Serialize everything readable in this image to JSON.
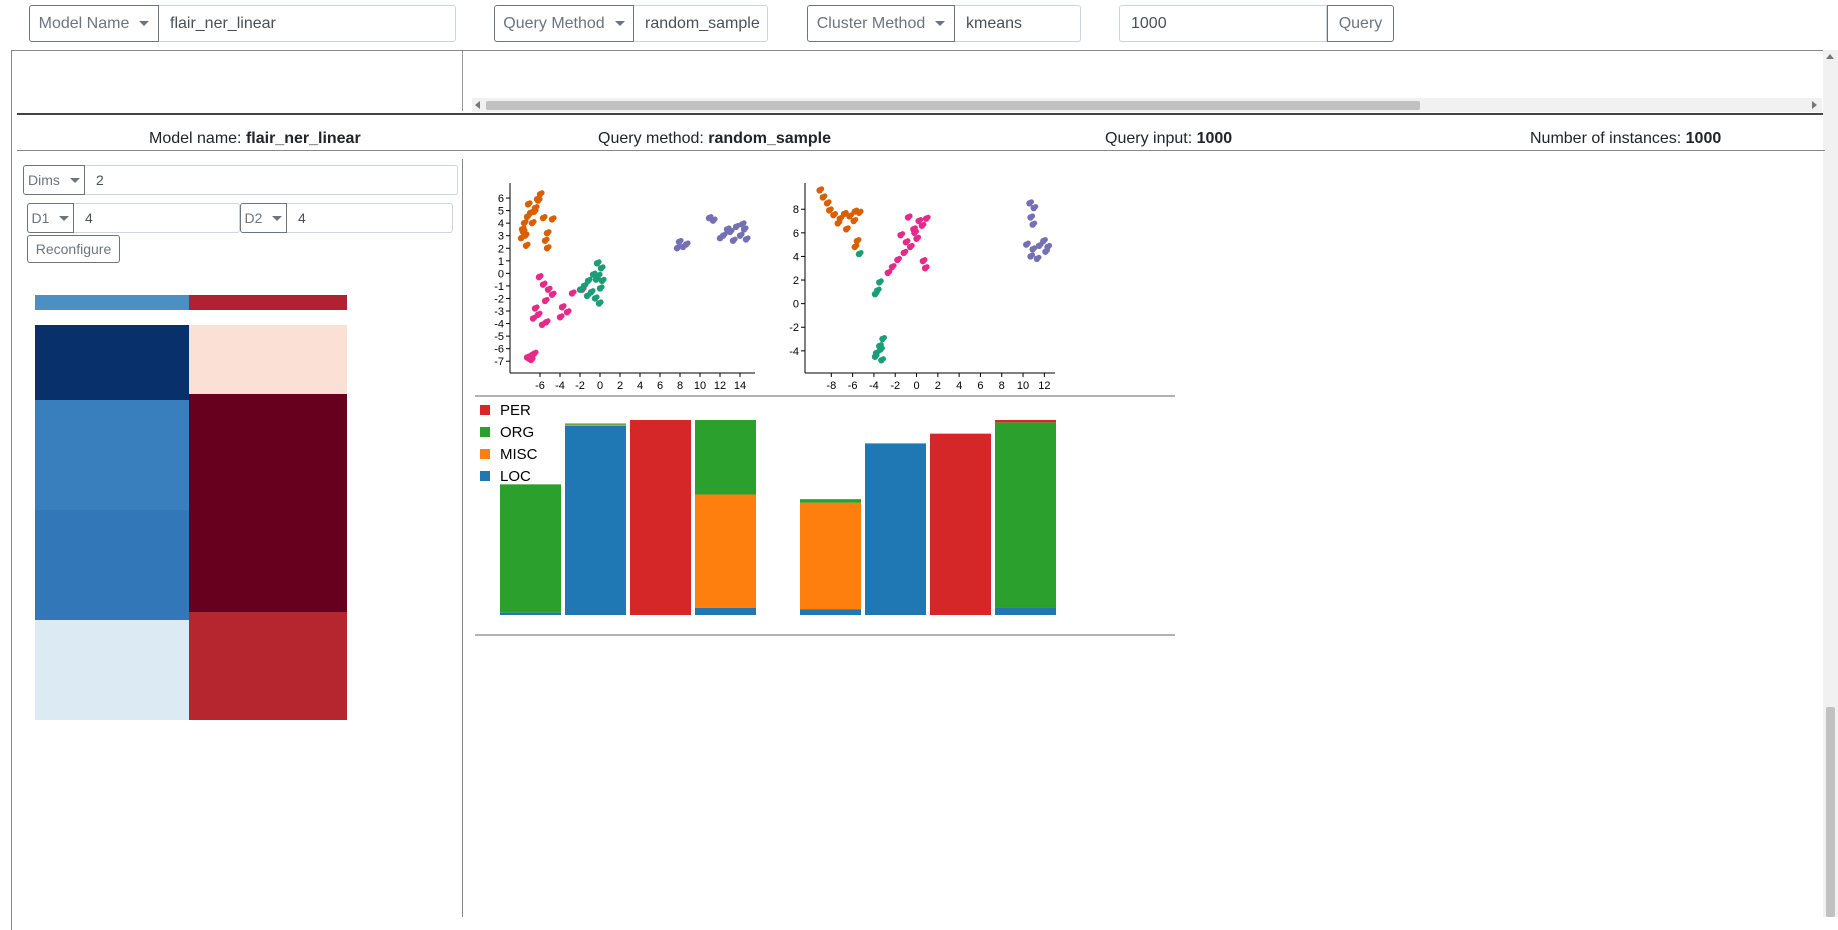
{
  "toolbar": {
    "model_label": "Model Name",
    "model_value": "flair_ner_linear",
    "query_method_label": "Query Method",
    "query_method_value": "random_sample",
    "cluster_method_label": "Cluster Method",
    "cluster_method_value": "kmeans",
    "query_value": "1000",
    "query_button": "Query"
  },
  "summary": {
    "model_label": "Model name:",
    "model_value": "flair_ner_linear",
    "method_label": "Query method:",
    "method_value": "random_sample",
    "input_label": "Query input:",
    "input_value": "1000",
    "instances_label": "Number of instances:",
    "instances_value": "1000"
  },
  "config": {
    "dims_label": "Dims",
    "dims_value": "2",
    "d1_label": "D1",
    "d1_value": "4",
    "d2_label": "D2",
    "d2_value": "4",
    "reconfigure_label": "Reconfigure"
  },
  "heatmap": {
    "header_colors": [
      "#4a90c4",
      "#b02233"
    ],
    "rows": [
      [
        "#08306b",
        "#fae0d5"
      ],
      [
        "#3a7fbd",
        "#67001f"
      ],
      [
        "#3278b8",
        "#67001f"
      ],
      [
        "#dceaf4",
        "#b5262f"
      ]
    ]
  },
  "scatter_colors": {
    "orange": "#d95f02",
    "pink": "#e7298a",
    "green": "#1b9e77",
    "purple": "#7570b3"
  },
  "chart_data": [
    {
      "type": "scatter",
      "x_ticks": [
        "-6",
        "-4",
        "-2",
        "0",
        "2",
        "4",
        "6",
        "8",
        "10",
        "12",
        "14"
      ],
      "y_ticks": [
        "6",
        "5",
        "4",
        "3",
        "2",
        "1",
        "0",
        "-1",
        "-2",
        "-3",
        "-4",
        "-5",
        "-6",
        "-7"
      ],
      "xlim": [
        -8.5,
        15.5
      ],
      "ylim": [
        -7.3,
        6.8
      ],
      "clusters": [
        {
          "color": "orange",
          "points": [
            [
              -6.0,
              6.3
            ],
            [
              -6.2,
              5.8
            ],
            [
              -6.5,
              5.2
            ],
            [
              -7.0,
              4.8
            ],
            [
              -7.3,
              4.5
            ],
            [
              -7.6,
              4.0
            ],
            [
              -7.8,
              3.5
            ],
            [
              -7.5,
              3.0
            ],
            [
              -7.9,
              2.8
            ],
            [
              -7.4,
              2.2
            ],
            [
              -4.8,
              4.3
            ],
            [
              -5.7,
              4.4
            ],
            [
              -5.3,
              3.2
            ],
            [
              -5.5,
              2.6
            ],
            [
              -5.3,
              2.0
            ],
            [
              -7.2,
              5.5
            ],
            [
              -6.8,
              4.0
            ],
            [
              -6.3,
              5.9
            ],
            [
              -7.7,
              3.3
            ],
            [
              -6.6,
              4.9
            ]
          ]
        },
        {
          "color": "pink",
          "points": [
            [
              -6.1,
              -0.3
            ],
            [
              -5.7,
              -0.9
            ],
            [
              -5.2,
              -1.3
            ],
            [
              -4.8,
              -1.7
            ],
            [
              -5.5,
              -2.2
            ],
            [
              -6.2,
              -3.3
            ],
            [
              -6.7,
              -3.6
            ],
            [
              -5.8,
              -4.1
            ],
            [
              -5.4,
              -3.9
            ],
            [
              -3.8,
              -2.7
            ],
            [
              -3.3,
              -3.1
            ],
            [
              -4.0,
              -3.5
            ],
            [
              -2.8,
              -1.6
            ],
            [
              -6.8,
              -6.5
            ],
            [
              -7.1,
              -6.8
            ],
            [
              -6.6,
              -6.4
            ],
            [
              -6.9,
              -6.9
            ],
            [
              -7.3,
              -6.7
            ],
            [
              -1.8,
              -1.3
            ],
            [
              -6.5,
              -2.8
            ]
          ]
        },
        {
          "color": "green",
          "points": [
            [
              -0.2,
              -0.2
            ],
            [
              0.1,
              0.4
            ],
            [
              -0.4,
              -0.5
            ],
            [
              0.2,
              -0.6
            ],
            [
              -0.9,
              -1.5
            ],
            [
              -0.5,
              -2.0
            ],
            [
              -0.1,
              -2.4
            ],
            [
              -1.6,
              -1.0
            ],
            [
              -2.0,
              -1.3
            ],
            [
              -1.2,
              -0.6
            ],
            [
              -0.3,
              0.8
            ],
            [
              0.0,
              -1.2
            ],
            [
              -0.7,
              -0.1
            ],
            [
              -1.3,
              -1.8
            ]
          ]
        },
        {
          "color": "purple",
          "points": [
            [
              7.9,
              2.5
            ],
            [
              8.3,
              2.1
            ],
            [
              8.6,
              2.3
            ],
            [
              7.7,
              2.0
            ],
            [
              10.9,
              4.4
            ],
            [
              11.3,
              4.2
            ],
            [
              12.0,
              2.8
            ],
            [
              12.3,
              3.0
            ],
            [
              13.0,
              3.3
            ],
            [
              13.6,
              3.7
            ],
            [
              14.0,
              3.0
            ],
            [
              14.4,
              3.5
            ],
            [
              14.6,
              2.7
            ],
            [
              13.3,
              2.6
            ],
            [
              12.7,
              3.5
            ],
            [
              14.2,
              3.9
            ]
          ]
        }
      ]
    },
    {
      "type": "scatter",
      "x_ticks": [
        "-8",
        "-6",
        "-4",
        "-2",
        "0",
        "2",
        "4",
        "6",
        "8",
        "10",
        "12"
      ],
      "y_ticks": [
        "8",
        "6",
        "4",
        "2",
        "0",
        "-2",
        "-4"
      ],
      "xlim": [
        -10,
        13
      ],
      "ylim": [
        -5.2,
        9.8
      ],
      "clusters": [
        {
          "color": "orange",
          "points": [
            [
              -9.1,
              9.6
            ],
            [
              -8.8,
              9.0
            ],
            [
              -8.4,
              8.5
            ],
            [
              -8.2,
              7.9
            ],
            [
              -7.8,
              7.5
            ],
            [
              -7.2,
              7.2
            ],
            [
              -6.8,
              7.6
            ],
            [
              -6.3,
              7.4
            ],
            [
              -5.9,
              7.0
            ],
            [
              -5.8,
              7.8
            ],
            [
              -5.4,
              7.7
            ],
            [
              -7.4,
              6.8
            ],
            [
              -6.6,
              6.3
            ],
            [
              -5.6,
              5.3
            ],
            [
              -5.8,
              4.8
            ]
          ]
        },
        {
          "color": "pink",
          "points": [
            [
              -0.8,
              7.3
            ],
            [
              0.2,
              7.0
            ],
            [
              0.5,
              6.6
            ],
            [
              -0.3,
              6.3
            ],
            [
              0.0,
              5.5
            ],
            [
              -0.6,
              4.8
            ],
            [
              -1.2,
              4.3
            ],
            [
              -1.8,
              3.7
            ],
            [
              -2.3,
              3.1
            ],
            [
              -2.7,
              2.6
            ],
            [
              -1.5,
              5.8
            ],
            [
              0.6,
              3.6
            ],
            [
              0.8,
              3.0
            ],
            [
              -0.2,
              6.0
            ],
            [
              0.9,
              7.2
            ],
            [
              -1.0,
              5.2
            ]
          ]
        },
        {
          "color": "green",
          "points": [
            [
              -5.4,
              4.2
            ],
            [
              -3.5,
              1.8
            ],
            [
              -3.7,
              1.1
            ],
            [
              -3.9,
              0.8
            ],
            [
              -3.2,
              -3.0
            ],
            [
              -3.5,
              -3.6
            ],
            [
              -3.8,
              -4.2
            ],
            [
              -3.3,
              -4.8
            ],
            [
              -3.9,
              -4.5
            ],
            [
              -3.4,
              -3.9
            ]
          ]
        },
        {
          "color": "purple",
          "points": [
            [
              10.6,
              8.5
            ],
            [
              11.0,
              8.1
            ],
            [
              10.7,
              7.3
            ],
            [
              10.9,
              6.7
            ],
            [
              10.3,
              5.0
            ],
            [
              10.9,
              4.6
            ],
            [
              11.5,
              4.9
            ],
            [
              11.9,
              5.3
            ],
            [
              12.1,
              4.4
            ],
            [
              10.7,
              4.0
            ],
            [
              11.3,
              3.8
            ],
            [
              12.3,
              4.8
            ]
          ]
        }
      ]
    },
    {
      "type": "bar",
      "stacked": true,
      "legend": [
        "PER",
        "ORG",
        "MISC",
        "LOC"
      ],
      "legend_colors": [
        "#d62728",
        "#2ca02c",
        "#ff7f0e",
        "#1f77b4"
      ],
      "groups": [
        {
          "bars": [
            {
              "LOC": 0.012,
              "MISC": 0,
              "ORG": 0.658,
              "PER": 0
            },
            {
              "LOC": 0.97,
              "MISC": 0.006,
              "ORG": 0.006,
              "PER": 0
            },
            {
              "LOC": 0,
              "MISC": 0,
              "ORG": 0,
              "PER": 1.0
            },
            {
              "LOC": 0.036,
              "MISC": 0.582,
              "ORG": 0.382,
              "PER": 0
            }
          ]
        },
        {
          "bars": [
            {
              "LOC": 0.03,
              "MISC": 0.546,
              "ORG": 0.018,
              "PER": 0
            },
            {
              "LOC": 0.88,
              "MISC": 0,
              "ORG": 0,
              "PER": 0
            },
            {
              "LOC": 0,
              "MISC": 0,
              "ORG": 0,
              "PER": 0.93
            },
            {
              "LOC": 0.036,
              "MISC": 0,
              "ORG": 0.952,
              "PER": 0.012
            }
          ]
        }
      ]
    }
  ]
}
